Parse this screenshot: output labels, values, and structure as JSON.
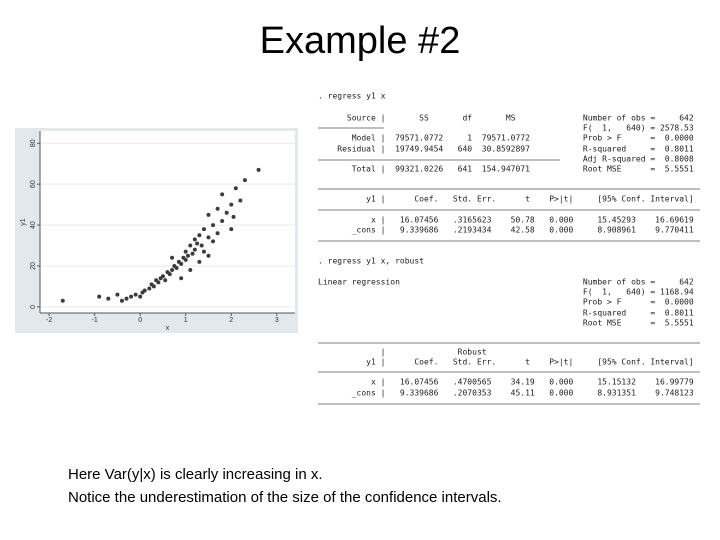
{
  "title": "Example #2",
  "chart_data": {
    "type": "scatter",
    "xlabel": "x",
    "ylabel": "y1",
    "color": "#3c3c3c",
    "x": [
      -1.7,
      -0.9,
      -0.7,
      -0.5,
      -0.4,
      -0.3,
      -0.2,
      -0.1,
      0,
      0.05,
      0.1,
      0.2,
      0.25,
      0.3,
      0.35,
      0.4,
      0.45,
      0.5,
      0.55,
      0.6,
      0.65,
      0.7,
      0.75,
      0.8,
      0.85,
      0.9,
      0.95,
      1.0,
      1.0,
      1.05,
      1.1,
      1.15,
      1.2,
      1.2,
      1.25,
      1.3,
      1.35,
      1.4,
      1.4,
      1.5,
      1.5,
      1.6,
      1.6,
      1.7,
      1.7,
      1.8,
      1.8,
      1.9,
      2.0,
      2.0,
      2.1,
      2.2,
      2.3,
      2.6,
      1.3,
      0.9,
      1.1,
      0.7,
      1.5,
      2.05
    ],
    "y": [
      3,
      5,
      4,
      6,
      3,
      4,
      5,
      6,
      5,
      7,
      8,
      9,
      11,
      10,
      13,
      12,
      14,
      15,
      13,
      17,
      16,
      18,
      20,
      19,
      22,
      21,
      24,
      23,
      27,
      25,
      30,
      26,
      28,
      33,
      31,
      35,
      30,
      38,
      27,
      34,
      45,
      40,
      32,
      48,
      36,
      42,
      55,
      46,
      50,
      38,
      58,
      52,
      62,
      67,
      22,
      14,
      18,
      24,
      25,
      44
    ],
    "xlim": [
      -2.2,
      3.4
    ],
    "ylim": [
      -3,
      86
    ],
    "xticks": [
      -2,
      -1,
      0,
      1,
      2,
      3
    ],
    "yticks": [
      0,
      20,
      40,
      60,
      80
    ],
    "grid": true
  },
  "stata_output": [
    ". regress y1 x",
    "      Source |       SS       df       MS              Number of obs =     642",
    "                                                       F(  1,   640) = 2578.53",
    "       Model |  79571.0772     1  79571.0772           Prob > F      =  0.0000",
    "    Residual |  19749.9454   640  30.8592897           R-squared     =  0.8011",
    "                                                       Adj R-squared =  0.8008",
    "       Total |  99321.0226   641  154.947071           Root MSE      =  5.5551",
    "          y1 |      Coef.   Std. Err.      t    P>|t|     [95% Conf. Interval]",
    "           x |   16.07456   .3165623    50.78   0.000     15.45293    16.69619",
    "       _cons |   9.339686   .2193434    42.58   0.000     8.908961    9.770411",
    ". regress y1 x, robust",
    "Linear regression                                      Number of obs =     642",
    "                                                       F(  1,   640) = 1168.94",
    "                                                       Prob > F      =  0.0000",
    "                                                       R-squared     =  0.8011",
    "                                                       Root MSE      =  5.5551",
    "             |               Robust",
    "          y1 |      Coef.   Std. Err.      t    P>|t|     [95% Conf. Interval]",
    "           x |   16.07456   .4700565    34.19   0.000     15.15132    16.99779",
    "       _cons |   9.339686   .2070353    45.11   0.000     8.931351    9.748123"
  ],
  "notes": [
    "Here Var(y|x) is clearly increasing in x.",
    "Notice the underestimation of the size of the confidence intervals."
  ]
}
